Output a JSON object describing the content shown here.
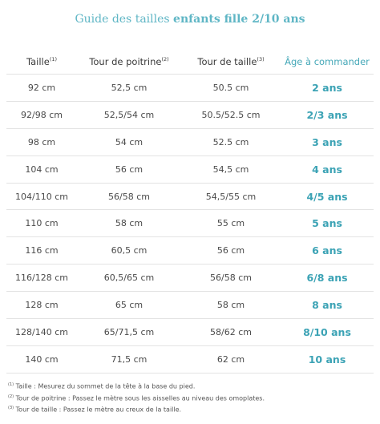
{
  "title": {
    "light": "Guide des tailles",
    "bold": "enfants fille 2/10 ans"
  },
  "table": {
    "headers": [
      {
        "label": "Taille",
        "sup": "(1)"
      },
      {
        "label": "Tour de poitrine",
        "sup": "(2)"
      },
      {
        "label": "Tour de taille",
        "sup": "(3)"
      },
      {
        "label": "Âge à commander",
        "sup": ""
      }
    ],
    "rows": [
      {
        "taille": "92 cm",
        "poitrine": "52,5 cm",
        "tour_taille": "50.5 cm",
        "age": "2 ans"
      },
      {
        "taille": "92/98 cm",
        "poitrine": "52,5/54 cm",
        "tour_taille": "50.5/52.5 cm",
        "age": "2/3 ans"
      },
      {
        "taille": "98 cm",
        "poitrine": "54 cm",
        "tour_taille": "52.5 cm",
        "age": "3 ans"
      },
      {
        "taille": "104 cm",
        "poitrine": "56 cm",
        "tour_taille": "54,5 cm",
        "age": "4 ans"
      },
      {
        "taille": "104/110 cm",
        "poitrine": "56/58 cm",
        "tour_taille": "54,5/55 cm",
        "age": "4/5 ans"
      },
      {
        "taille": "110 cm",
        "poitrine": "58 cm",
        "tour_taille": "55 cm",
        "age": "5 ans"
      },
      {
        "taille": "116 cm",
        "poitrine": "60,5 cm",
        "tour_taille": "56 cm",
        "age": "6 ans"
      },
      {
        "taille": "116/128 cm",
        "poitrine": "60,5/65 cm",
        "tour_taille": "56/58 cm",
        "age": "6/8 ans"
      },
      {
        "taille": "128 cm",
        "poitrine": "65 cm",
        "tour_taille": "58 cm",
        "age": "8 ans"
      },
      {
        "taille": "128/140 cm",
        "poitrine": "65/71,5 cm",
        "tour_taille": "58/62 cm",
        "age": "8/10 ans"
      },
      {
        "taille": "140 cm",
        "poitrine": "71,5 cm",
        "tour_taille": "62 cm",
        "age": "10 ans"
      }
    ]
  },
  "footnotes": [
    {
      "sup": "(1)",
      "text": "Taille : Mesurez du sommet de la tête à la base du pied."
    },
    {
      "sup": "(2)",
      "text": "Tour de poitrine : Passez le mètre sous les aisselles au niveau des omoplates."
    },
    {
      "sup": "(3)",
      "text": "Tour de taille : Passez le mètre au creux de la taille."
    }
  ],
  "colors": {
    "accent": "#3ca3b5",
    "title": "#5fb6c5",
    "text": "#4a4a4a",
    "divider": "#e3e3e3"
  }
}
